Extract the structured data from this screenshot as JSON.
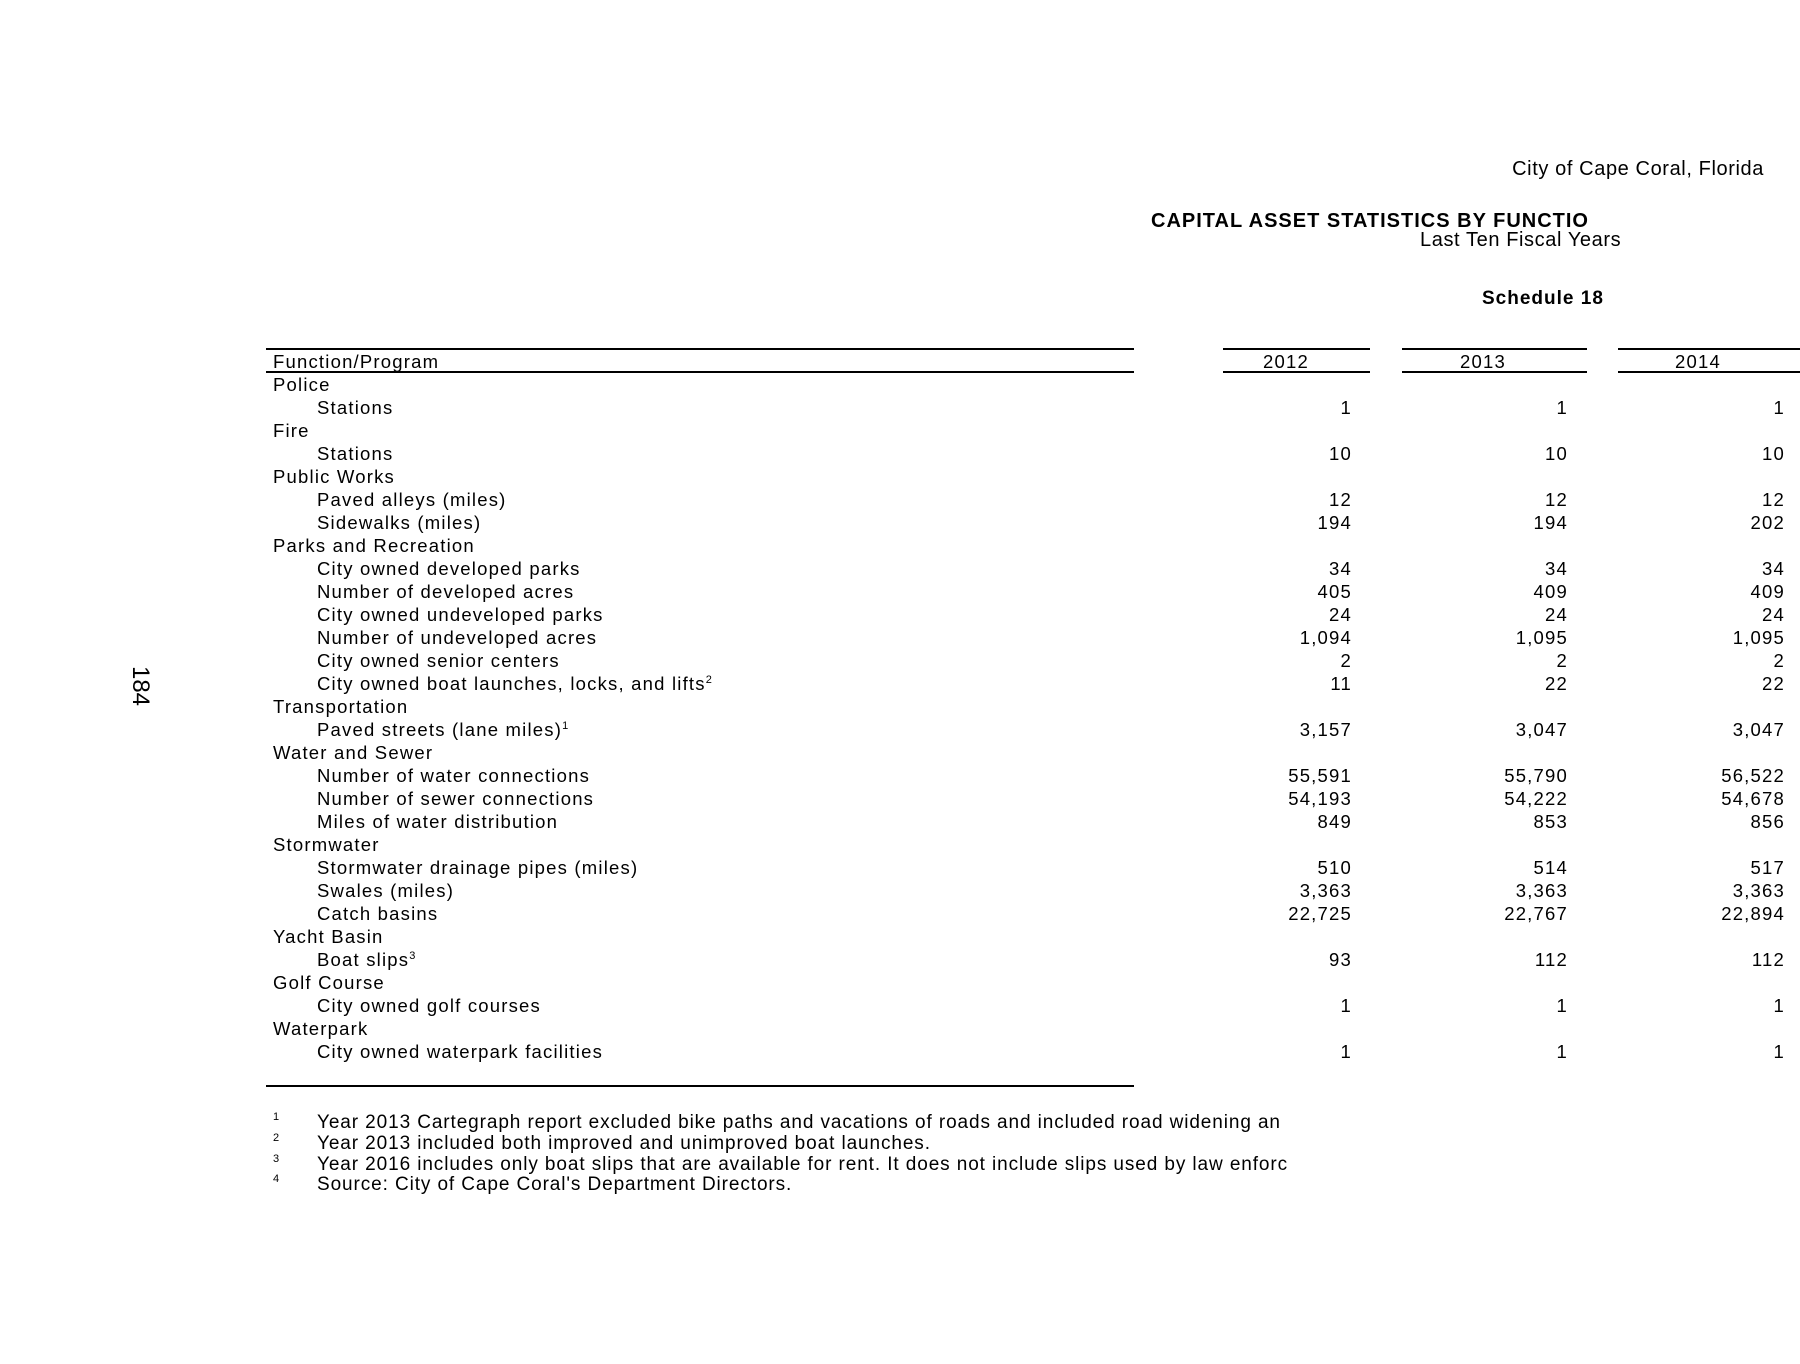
{
  "header": {
    "entity": "City of Cape Coral, Florida",
    "title": "CAPITAL ASSET STATISTICS BY FUNCTIO",
    "subtitle": "Last Ten Fiscal Years",
    "schedule": "Schedule 18"
  },
  "page_number": "184",
  "table": {
    "label_header": "Function/Program",
    "years": [
      "2012",
      "2013",
      "2014"
    ],
    "rows": [
      {
        "type": "group",
        "label": "Police"
      },
      {
        "type": "item",
        "label": "Stations",
        "values": [
          "1",
          "1",
          "1"
        ]
      },
      {
        "type": "group",
        "label": "Fire"
      },
      {
        "type": "item",
        "label": "Stations",
        "values": [
          "10",
          "10",
          "10"
        ]
      },
      {
        "type": "group",
        "label": "Public Works"
      },
      {
        "type": "item",
        "label": "Paved alleys (miles)",
        "values": [
          "12",
          "12",
          "12"
        ]
      },
      {
        "type": "item",
        "label": "Sidewalks (miles)",
        "values": [
          "194",
          "194",
          "202"
        ]
      },
      {
        "type": "group",
        "label": "Parks and Recreation"
      },
      {
        "type": "item",
        "label": "City owned developed parks",
        "values": [
          "34",
          "34",
          "34"
        ]
      },
      {
        "type": "item",
        "label": "Number of developed acres",
        "values": [
          "405",
          "409",
          "409"
        ]
      },
      {
        "type": "item",
        "label": "City owned undeveloped parks",
        "values": [
          "24",
          "24",
          "24"
        ]
      },
      {
        "type": "item",
        "label": "Number of undeveloped acres",
        "values": [
          "1,094",
          "1,095",
          "1,095"
        ]
      },
      {
        "type": "item",
        "label": "City owned senior centers",
        "values": [
          "2",
          "2",
          "2"
        ]
      },
      {
        "type": "item",
        "label": "City owned boat launches, locks, and lifts",
        "note": "2",
        "values": [
          "11",
          "22",
          "22"
        ]
      },
      {
        "type": "group",
        "label": "Transportation"
      },
      {
        "type": "item",
        "label": "Paved streets (lane miles)",
        "note": "1",
        "values": [
          "3,157",
          "3,047",
          "3,047"
        ]
      },
      {
        "type": "group",
        "label": "Water and Sewer"
      },
      {
        "type": "item",
        "label": "Number of water connections",
        "values": [
          "55,591",
          "55,790",
          "56,522"
        ]
      },
      {
        "type": "item",
        "label": "Number of sewer connections",
        "values": [
          "54,193",
          "54,222",
          "54,678"
        ]
      },
      {
        "type": "item",
        "label": "Miles of water distribution",
        "values": [
          "849",
          "853",
          "856"
        ]
      },
      {
        "type": "group",
        "label": "Stormwater"
      },
      {
        "type": "item",
        "label": "Stormwater drainage pipes (miles)",
        "values": [
          "510",
          "514",
          "517"
        ]
      },
      {
        "type": "item",
        "label": "Swales (miles)",
        "values": [
          "3,363",
          "3,363",
          "3,363"
        ]
      },
      {
        "type": "item",
        "label": "Catch basins",
        "values": [
          "22,725",
          "22,767",
          "22,894"
        ]
      },
      {
        "type": "group",
        "label": "Yacht Basin"
      },
      {
        "type": "item",
        "label": "Boat slips",
        "note": "3",
        "values": [
          "93",
          "112",
          "112"
        ]
      },
      {
        "type": "group",
        "label": "Golf Course"
      },
      {
        "type": "item",
        "label": "City owned golf courses",
        "values": [
          "1",
          "1",
          "1"
        ]
      },
      {
        "type": "group",
        "label": "Waterpark"
      },
      {
        "type": "item",
        "label": "City owned waterpark facilities",
        "values": [
          "1",
          "1",
          "1"
        ]
      }
    ]
  },
  "footnotes": [
    {
      "mark": "1",
      "text": "Year 2013 Cartegraph report excluded bike paths and vacations of roads and included road widening an"
    },
    {
      "mark": "2",
      "text": "Year 2013 included both improved and unimproved boat launches."
    },
    {
      "mark": "3",
      "text": "Year 2016 includes only boat slips that are available for rent.  It does not include slips used by law enforc"
    },
    {
      "mark": "4",
      "text": "Source: City of Cape Coral's Department Directors."
    }
  ]
}
